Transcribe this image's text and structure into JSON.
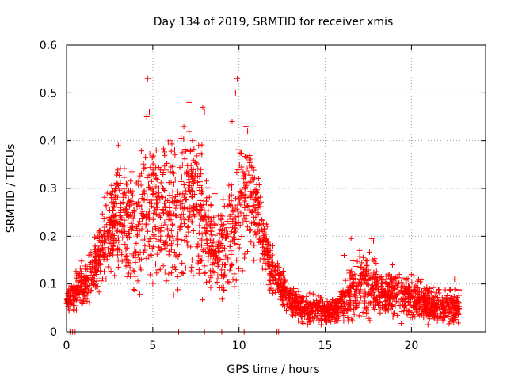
{
  "chart_data": {
    "type": "scatter",
    "title": "Day 134 of 2019, SRMTID for receiver xmis",
    "xlabel": "GPS time / hours",
    "ylabel": "SRMTID / TECUs",
    "xlim": [
      0,
      24.3
    ],
    "ylim": [
      0,
      0.6
    ],
    "xticks": [
      "0",
      "5",
      "10",
      "15",
      "20"
    ],
    "yticks": [
      "0",
      "0.1",
      "0.2",
      "0.3",
      "0.4",
      "0.5",
      "0.6"
    ],
    "grid": true,
    "marker": "plus",
    "marker_color": "#ff0000",
    "series": [
      {
        "name": "SRMTID",
        "profile": {
          "x": [
            0.0,
            0.5,
            1.0,
            1.5,
            2.0,
            2.5,
            3.0,
            3.5,
            4.0,
            4.5,
            5.0,
            5.5,
            6.0,
            6.5,
            7.0,
            7.5,
            8.0,
            8.5,
            9.0,
            9.5,
            10.0,
            10.5,
            11.0,
            11.5,
            12.0,
            12.5,
            13.0,
            13.5,
            14.0,
            14.5,
            15.0,
            15.5,
            16.0,
            16.5,
            17.0,
            17.5,
            18.0,
            18.5,
            19.0,
            19.5,
            20.0,
            20.5,
            21.0,
            21.5,
            22.0,
            22.5,
            22.8
          ],
          "y": [
            0.07,
            0.08,
            0.1,
            0.12,
            0.17,
            0.22,
            0.25,
            0.22,
            0.2,
            0.24,
            0.26,
            0.25,
            0.24,
            0.26,
            0.28,
            0.26,
            0.22,
            0.18,
            0.17,
            0.2,
            0.26,
            0.3,
            0.26,
            0.18,
            0.12,
            0.09,
            0.07,
            0.05,
            0.05,
            0.045,
            0.04,
            0.045,
            0.06,
            0.08,
            0.09,
            0.1,
            0.09,
            0.08,
            0.08,
            0.075,
            0.07,
            0.065,
            0.06,
            0.055,
            0.05,
            0.05,
            0.06
          ],
          "spread": [
            0.03,
            0.04,
            0.05,
            0.06,
            0.08,
            0.1,
            0.12,
            0.12,
            0.13,
            0.15,
            0.15,
            0.14,
            0.15,
            0.15,
            0.15,
            0.15,
            0.13,
            0.1,
            0.1,
            0.12,
            0.15,
            0.13,
            0.1,
            0.07,
            0.05,
            0.04,
            0.03,
            0.03,
            0.03,
            0.03,
            0.03,
            0.03,
            0.04,
            0.06,
            0.07,
            0.07,
            0.06,
            0.05,
            0.05,
            0.05,
            0.045,
            0.04,
            0.04,
            0.04,
            0.035,
            0.035,
            0.035
          ]
        },
        "peaks": [
          {
            "x": 4.7,
            "y": 0.53
          },
          {
            "x": 4.8,
            "y": 0.46
          },
          {
            "x": 4.65,
            "y": 0.45
          },
          {
            "x": 9.9,
            "y": 0.53
          },
          {
            "x": 9.8,
            "y": 0.5
          },
          {
            "x": 7.1,
            "y": 0.48
          },
          {
            "x": 7.9,
            "y": 0.47
          },
          {
            "x": 8.0,
            "y": 0.46
          },
          {
            "x": 10.4,
            "y": 0.43
          },
          {
            "x": 10.5,
            "y": 0.42
          },
          {
            "x": 9.6,
            "y": 0.44
          },
          {
            "x": 6.0,
            "y": 0.4
          },
          {
            "x": 3.0,
            "y": 0.39
          },
          {
            "x": 7.3,
            "y": 0.4
          },
          {
            "x": 5.2,
            "y": 0.38
          },
          {
            "x": 17.7,
            "y": 0.195
          },
          {
            "x": 17.8,
            "y": 0.19
          },
          {
            "x": 16.5,
            "y": 0.195
          },
          {
            "x": 17.0,
            "y": 0.17
          },
          {
            "x": 16.1,
            "y": 0.16
          },
          {
            "x": 18.9,
            "y": 0.14
          },
          {
            "x": 19.3,
            "y": 0.12
          },
          {
            "x": 22.5,
            "y": 0.11
          },
          {
            "x": 20.0,
            "y": 0.12
          }
        ],
        "zero_points_x": [
          0.2,
          0.35,
          0.5,
          6.5,
          8.0,
          9.0,
          10.3,
          12.2,
          12.3
        ]
      }
    ]
  }
}
